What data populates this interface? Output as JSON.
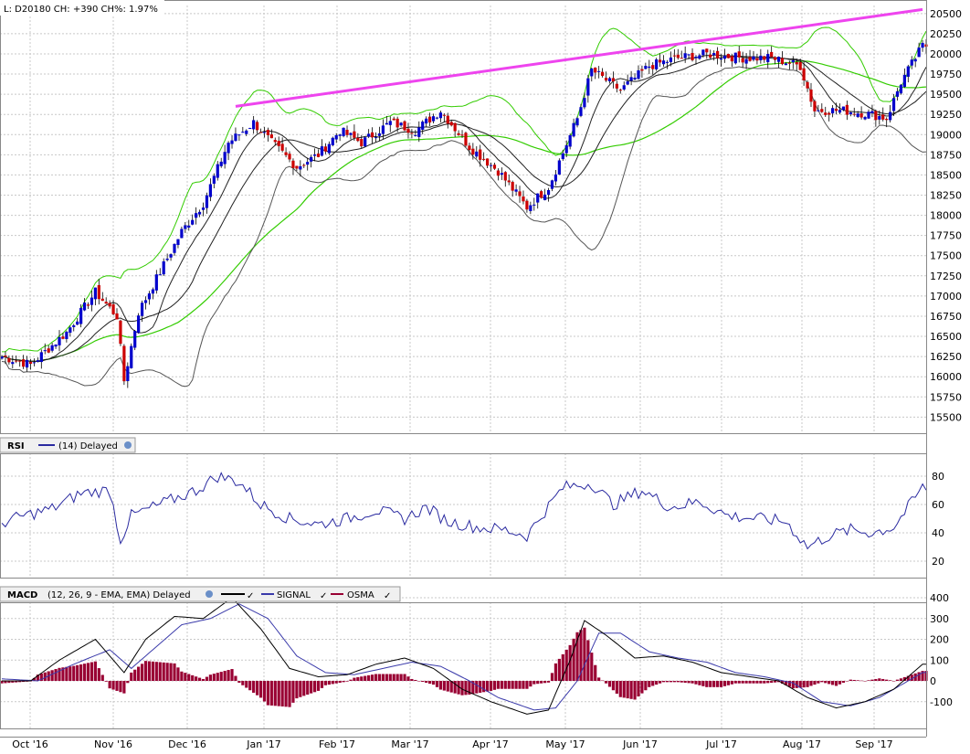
{
  "header": {
    "symbol_line": "L: D20180 CH: +390 CH%: 1.97%"
  },
  "rsi": {
    "name": "RSI",
    "params": "(14) Delayed"
  },
  "macd": {
    "name": "MACD",
    "params": "(12, 26, 9 - EMA, EMA) Delayed",
    "signal": "SIGNAL",
    "osma": "OSMA"
  },
  "colors": {
    "up": "#0000cc",
    "down": "#cc0000",
    "bollinger": "#33cc00",
    "envelope": "#555555",
    "trend": "#ee44ee",
    "rsi": "#2a2aa0",
    "macd": "#000000",
    "signal": "#3a3aaa",
    "osma": "#990033"
  },
  "chart_data": [
    {
      "type": "candlestick",
      "price_axis": {
        "min": 15500,
        "max": 20500,
        "ticks": [
          "20500",
          "20250",
          "20000",
          "19750",
          "19500",
          "19250",
          "19000",
          "18750",
          "18500",
          "18250",
          "18000",
          "17750",
          "17500",
          "17250",
          "17000",
          "16750",
          "16500",
          "16250",
          "16000",
          "15750",
          "15500"
        ]
      },
      "x_months": [
        "Oct '16",
        "Nov '16",
        "Dec '16",
        "Jan '17",
        "Feb '17",
        "Mar '17",
        "Apr '17",
        "May '17",
        "Jun '17",
        "Jul '17",
        "Aug '17",
        "Sep '17"
      ],
      "close_anchors": [
        [
          0,
          16250
        ],
        [
          8,
          16150
        ],
        [
          18,
          16550
        ],
        [
          26,
          17050
        ],
        [
          32,
          16750
        ],
        [
          34,
          15950
        ],
        [
          38,
          16800
        ],
        [
          44,
          17300
        ],
        [
          50,
          17800
        ],
        [
          56,
          18150
        ],
        [
          63,
          18900
        ],
        [
          70,
          19150
        ],
        [
          75,
          18900
        ],
        [
          82,
          18600
        ],
        [
          88,
          18750
        ],
        [
          94,
          19050
        ],
        [
          100,
          18900
        ],
        [
          108,
          19150
        ],
        [
          115,
          19050
        ],
        [
          122,
          19300
        ],
        [
          130,
          18850
        ],
        [
          138,
          18550
        ],
        [
          146,
          18100
        ],
        [
          152,
          18350
        ],
        [
          160,
          19200
        ],
        [
          164,
          19800
        ],
        [
          172,
          19550
        ],
        [
          180,
          19850
        ],
        [
          188,
          19950
        ],
        [
          196,
          20000
        ],
        [
          206,
          19950
        ],
        [
          214,
          19950
        ],
        [
          222,
          19850
        ],
        [
          226,
          19300
        ],
        [
          234,
          19300
        ],
        [
          242,
          19250
        ],
        [
          246,
          19200
        ],
        [
          250,
          19650
        ],
        [
          256,
          20100
        ]
      ],
      "trendline": [
        [
          65,
          19350
        ],
        [
          256,
          20550
        ]
      ],
      "gridlines": true
    },
    {
      "type": "line",
      "name": "RSI",
      "yaxis_ticks": [
        "80",
        "60",
        "40",
        "20"
      ],
      "ylim": [
        0,
        100
      ],
      "anchors": [
        [
          0,
          47
        ],
        [
          6,
          52
        ],
        [
          14,
          57
        ],
        [
          22,
          68
        ],
        [
          30,
          70
        ],
        [
          33,
          35
        ],
        [
          36,
          52
        ],
        [
          44,
          60
        ],
        [
          54,
          70
        ],
        [
          60,
          80
        ],
        [
          66,
          76
        ],
        [
          72,
          60
        ],
        [
          80,
          50
        ],
        [
          88,
          46
        ],
        [
          96,
          50
        ],
        [
          104,
          56
        ],
        [
          112,
          50
        ],
        [
          118,
          58
        ],
        [
          124,
          48
        ],
        [
          132,
          44
        ],
        [
          140,
          42
        ],
        [
          146,
          38
        ],
        [
          150,
          52
        ],
        [
          156,
          72
        ],
        [
          164,
          75
        ],
        [
          170,
          60
        ],
        [
          178,
          70
        ],
        [
          186,
          58
        ],
        [
          194,
          62
        ],
        [
          202,
          52
        ],
        [
          210,
          50
        ],
        [
          218,
          48
        ],
        [
          224,
          30
        ],
        [
          230,
          38
        ],
        [
          236,
          42
        ],
        [
          242,
          40
        ],
        [
          248,
          44
        ],
        [
          256,
          72
        ]
      ]
    },
    {
      "type": "line",
      "name": "MACD",
      "yaxis_ticks": [
        "400",
        "300",
        "200",
        "100",
        "0",
        "-100"
      ],
      "ylim": [
        -200,
        450
      ],
      "macd_anchors": [
        [
          0,
          0
        ],
        [
          8,
          0
        ],
        [
          16,
          100
        ],
        [
          26,
          200
        ],
        [
          34,
          40
        ],
        [
          40,
          200
        ],
        [
          48,
          310
        ],
        [
          56,
          300
        ],
        [
          64,
          400
        ],
        [
          72,
          250
        ],
        [
          80,
          60
        ],
        [
          88,
          20
        ],
        [
          96,
          30
        ],
        [
          104,
          80
        ],
        [
          112,
          110
        ],
        [
          120,
          60
        ],
        [
          128,
          -40
        ],
        [
          136,
          -100
        ],
        [
          146,
          -160
        ],
        [
          152,
          -140
        ],
        [
          158,
          100
        ],
        [
          162,
          290
        ],
        [
          168,
          220
        ],
        [
          176,
          110
        ],
        [
          184,
          120
        ],
        [
          192,
          90
        ],
        [
          200,
          40
        ],
        [
          208,
          20
        ],
        [
          216,
          0
        ],
        [
          224,
          -80
        ],
        [
          232,
          -130
        ],
        [
          240,
          -100
        ],
        [
          248,
          -40
        ],
        [
          256,
          80
        ]
      ],
      "signal_anchors": [
        [
          0,
          10
        ],
        [
          10,
          0
        ],
        [
          20,
          80
        ],
        [
          30,
          150
        ],
        [
          36,
          60
        ],
        [
          42,
          150
        ],
        [
          50,
          270
        ],
        [
          58,
          300
        ],
        [
          66,
          370
        ],
        [
          74,
          300
        ],
        [
          82,
          120
        ],
        [
          90,
          40
        ],
        [
          98,
          30
        ],
        [
          106,
          60
        ],
        [
          114,
          90
        ],
        [
          122,
          70
        ],
        [
          130,
          0
        ],
        [
          138,
          -80
        ],
        [
          148,
          -140
        ],
        [
          154,
          -130
        ],
        [
          160,
          0
        ],
        [
          166,
          230
        ],
        [
          172,
          230
        ],
        [
          180,
          140
        ],
        [
          188,
          110
        ],
        [
          196,
          90
        ],
        [
          204,
          40
        ],
        [
          212,
          20
        ],
        [
          220,
          -10
        ],
        [
          228,
          -100
        ],
        [
          236,
          -120
        ],
        [
          244,
          -80
        ],
        [
          256,
          40
        ]
      ]
    }
  ]
}
